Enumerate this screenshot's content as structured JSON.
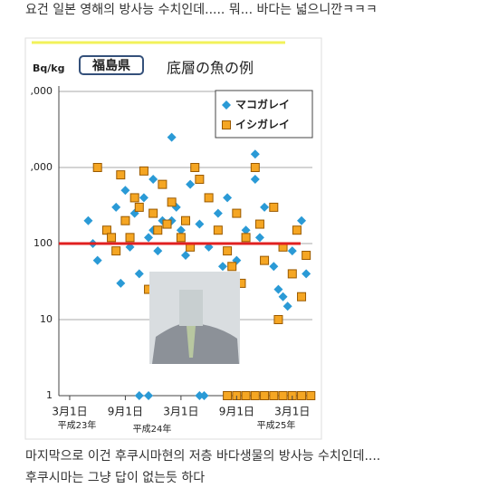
{
  "post": {
    "intro": "요건 일본 영해의 방사능 수치인데..... 뭐... 바다는 넓으니깐ㅋㅋㅋ",
    "outro_1": "마지막으로 이건 후쿠시마현의 저층 바다생물의 방사능 수치인데....",
    "outro_2": "후쿠시마는 그냥 답이 없는듯 하다"
  },
  "chart_data": {
    "type": "scatter",
    "title": "底層の魚の例",
    "badge": "福島県",
    "y_label": "Bq/kg",
    "log_y": true,
    "grid": true,
    "reference_line": {
      "value": 100,
      "color": "#e02020"
    },
    "x_group_labels": [
      "平成23年",
      "平成24年",
      "平成25年"
    ],
    "xlim": [
      -1.5,
      26.5
    ],
    "xticks": [
      {
        "value": 0,
        "label": "3月1日"
      },
      {
        "value": 6,
        "label": "9月1日"
      },
      {
        "value": 12,
        "label": "3月1日"
      },
      {
        "value": 18,
        "label": "9月1日"
      },
      {
        "value": 24,
        "label": "3月1日"
      }
    ],
    "ylim": [
      1,
      10000
    ],
    "yticks": [
      1,
      10,
      100,
      {
        "value": 1000,
        "label": ",000"
      },
      {
        "value": 10000,
        "label": ",000"
      }
    ],
    "legend": "top-right",
    "series": [
      {
        "name": "マコガレイ",
        "color": "#2a9ad6",
        "marker": "diamond",
        "x": [
          2,
          3,
          4,
          5,
          6,
          6.5,
          7,
          7.5,
          8,
          8.5,
          9,
          9.5,
          10,
          11,
          11.5,
          12,
          13,
          14,
          15,
          16,
          17,
          18,
          19,
          20,
          21,
          22,
          23,
          24,
          25,
          25.5,
          2.5,
          5.5,
          9,
          12.5,
          16.5,
          20.5,
          23.5,
          11,
          7.5,
          8.5,
          14,
          14.5,
          20,
          22.5
        ],
        "values": [
          200,
          60,
          150,
          300,
          500,
          90,
          250,
          40,
          400,
          120,
          700,
          80,
          200,
          2500,
          300,
          150,
          600,
          180,
          90,
          250,
          400,
          60,
          150,
          1500,
          300,
          50,
          20,
          80,
          200,
          40,
          100,
          30,
          150,
          70,
          50,
          120,
          15,
          200,
          1,
          1,
          1,
          1,
          700,
          25
        ]
      },
      {
        "name": "イシガレイ",
        "color": "#f5a623",
        "marker": "square",
        "x": [
          3,
          4,
          5,
          5.5,
          6,
          6.5,
          7,
          7.5,
          8,
          9,
          9.5,
          10,
          10.5,
          11,
          12,
          12.5,
          13,
          14,
          15,
          16,
          17,
          17.5,
          18,
          19,
          20,
          20.5,
          21,
          22,
          23,
          24,
          24.5,
          25,
          25.5,
          4.5,
          8.5,
          13.5,
          18.5,
          22.5,
          17,
          18,
          19,
          20,
          21,
          22,
          23,
          24,
          25,
          26
        ],
        "values": [
          1000,
          150,
          80,
          800,
          200,
          120,
          400,
          300,
          900,
          250,
          150,
          600,
          180,
          350,
          120,
          200,
          90,
          700,
          400,
          150,
          80,
          50,
          250,
          120,
          1000,
          180,
          60,
          300,
          90,
          40,
          150,
          20,
          70,
          120,
          25,
          1000,
          30,
          10,
          1,
          1,
          1,
          1,
          1,
          1,
          1,
          1,
          1,
          1
        ]
      }
    ]
  }
}
